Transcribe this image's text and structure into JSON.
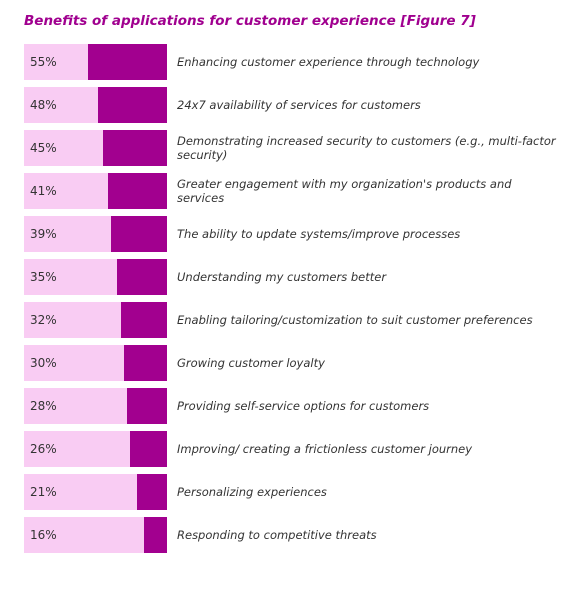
{
  "chart_data": {
    "type": "bar",
    "orientation": "horizontal",
    "title": "Benefits of applications for customer experience [Figure 7]",
    "categories": [
      "Enhancing customer experience through technology",
      "24x7 availability of services for customers",
      "Demonstrating increased security to customers (e.g., multi-factor security)",
      "Greater engagement with my organization's products and services",
      "The ability to update systems/improve processes",
      "Understanding my customers better",
      "Enabling tailoring/customization to suit customer preferences",
      "Growing customer loyalty",
      "Providing self-service options for customers",
      "Improving/ creating a frictionless customer journey",
      "Personalizing experiences",
      "Responding to competitive threats"
    ],
    "values": [
      55,
      48,
      45,
      41,
      39,
      35,
      32,
      30,
      28,
      26,
      21,
      16
    ],
    "value_labels": [
      "55%",
      "48%",
      "45%",
      "41%",
      "39%",
      "35%",
      "32%",
      "30%",
      "28%",
      "26%",
      "21%",
      "16%"
    ],
    "unit": "%",
    "xlim": [
      0,
      100
    ],
    "colors": {
      "title": "#a0008f",
      "bar_fill": "#a2008f",
      "bar_track": "#f9ccf3"
    }
  }
}
